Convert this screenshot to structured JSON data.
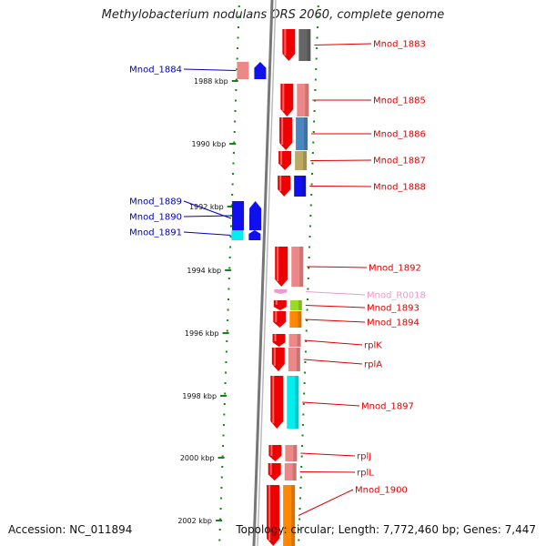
{
  "title": "Methylobacterium nodulans ORS 2060, complete genome",
  "footer": {
    "accession": "Accession: NC_011894",
    "topology": "Topology: circular; Length: 7,772,460 bp; Genes: 7,447"
  },
  "ruler_ticks": [
    "1988 kbp",
    "1990 kbp",
    "1992 kbp",
    "1994 kbp",
    "1996 kbp",
    "1998 kbp",
    "2000 kbp",
    "2002 kbp"
  ],
  "colors": {
    "forward_label": "#dd0000",
    "reverse_label": "#0000bb",
    "rna_label": "#ee99cc",
    "ruler_dots": "#118811",
    "backbone": "#888888"
  },
  "genes": [
    {
      "label": "Mnod_1883",
      "strand": "forward",
      "color": "#666666"
    },
    {
      "label": "Mnod_1884",
      "strand": "reverse",
      "color": "#ee8888"
    },
    {
      "label": "Mnod_1885",
      "strand": "forward",
      "color": "#ee8888"
    },
    {
      "label": "Mnod_1886",
      "strand": "forward",
      "color": "#4a86c0"
    },
    {
      "label": "Mnod_1887",
      "strand": "forward",
      "color": "#bbaa66"
    },
    {
      "label": "Mnod_1888",
      "strand": "forward",
      "color": "#1010ee"
    },
    {
      "label": "Mnod_1889",
      "strand": "reverse",
      "color": "#666666"
    },
    {
      "label": "Mnod_1890",
      "strand": "reverse",
      "color": "#1010ee"
    },
    {
      "label": "Mnod_1891",
      "strand": "reverse",
      "color": "#00eeee"
    },
    {
      "label": "Mnod_1892",
      "strand": "forward",
      "color": "#ee8888"
    },
    {
      "label": "Mnod_R0018",
      "strand": "forward",
      "color": "#ee99cc"
    },
    {
      "label": "Mnod_1893",
      "strand": "forward",
      "color": "#99dd22"
    },
    {
      "label": "Mnod_1894",
      "strand": "forward",
      "color": "#ff8800"
    },
    {
      "label": "rplK",
      "strand": "forward",
      "color": "#ee8888"
    },
    {
      "label": "rplA",
      "strand": "forward",
      "color": "#ee8888"
    },
    {
      "label": "Mnod_1897",
      "strand": "forward",
      "color": "#00eeee"
    },
    {
      "label": "rplJ",
      "strand": "forward",
      "color": "#ee8888"
    },
    {
      "label": "rplL",
      "strand": "forward",
      "color": "#ee8888"
    },
    {
      "label": "Mnod_1900",
      "strand": "forward",
      "color": "#ff8800"
    }
  ]
}
